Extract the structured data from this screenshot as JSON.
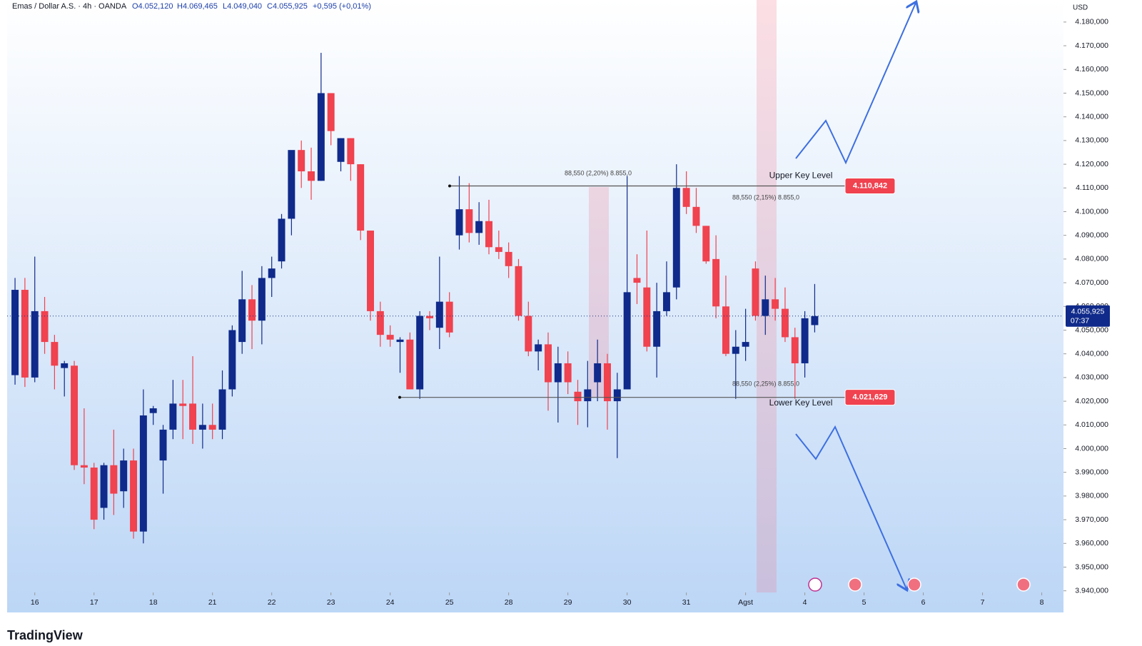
{
  "chart_data": {
    "type": "candlestick",
    "title": "Emas / Dollar A.S. · 4h · OANDA",
    "ohlc_labels": [
      "O4.052,120",
      "H4.069,465",
      "L4.049,040",
      "C4.055,925",
      "+0,595 (+0,01%)"
    ],
    "currency": "USD",
    "up_color": "#0f2a8a",
    "down_color": "#f0424f",
    "open": [
      4031,
      4067,
      4030,
      4058,
      4045,
      4034,
      4035,
      3993,
      3992,
      3975,
      3993,
      3982,
      3995,
      3965,
      4015,
      3995,
      4008,
      4019,
      4019,
      4008,
      4010,
      4008,
      4025,
      4045,
      4063,
      4054,
      4072,
      4079,
      4097,
      4126,
      4117,
      4113,
      4150,
      4121,
      4131,
      4120,
      4092,
      4058,
      4048,
      4045,
      4046,
      4025,
      4056,
      4051,
      4062,
      4090,
      4101,
      4091,
      4096,
      4085,
      4083,
      4077,
      4056,
      4041,
      4044,
      4028,
      4036,
      4024,
      4020,
      4028,
      4036,
      4020,
      4025,
      4072,
      4068,
      4043,
      4058,
      4068,
      4110,
      4102,
      4094,
      4080,
      4060,
      4040,
      4043,
      4076,
      4056,
      4063,
      4059,
      4047,
      4036,
      4052.12
    ],
    "high": [
      4072,
      4072,
      4081,
      4064,
      4048,
      4037,
      4037,
      4017,
      3994,
      3994,
      4008,
      4000,
      4000,
      4025,
      4018,
      4010,
      4029,
      4029,
      4039,
      4019,
      4019,
      4033,
      4052,
      4075,
      4069,
      4077,
      4081,
      4099,
      4125,
      4130,
      4127,
      4167,
      4150,
      4131,
      4131,
      4120,
      4092,
      4062,
      4052,
      4047,
      4049,
      4058,
      4058,
      4081,
      4066,
      4115,
      4112,
      4104,
      4105,
      4092,
      4087,
      4080,
      4062,
      4046,
      4049,
      4043,
      4041,
      4029,
      4037,
      4046,
      4040,
      4032,
      4115,
      4082,
      4092,
      4070,
      4079,
      4120,
      4117,
      4110,
      4094,
      4090,
      4073,
      4050,
      4059,
      4079,
      4073,
      4072,
      4068,
      4051,
      4058,
      4069.465
    ],
    "low": [
      4027,
      4026,
      4028,
      4040,
      4025,
      4022,
      3991,
      3985,
      3966,
      3970,
      3972,
      3975,
      3962,
      3960,
      4010,
      3981,
      4004,
      4004,
      4002,
      4000,
      4004,
      4004,
      4022,
      4040,
      4042,
      4044,
      4064,
      4076,
      4090,
      4110,
      4105,
      4113,
      4128,
      4117,
      4113,
      4088,
      4054,
      4043,
      4043,
      4032,
      4025,
      4021,
      4050,
      4042,
      4047,
      4084,
      4087,
      4086,
      4082,
      4080,
      4072,
      4054,
      4039,
      4033,
      4016,
      4011,
      4023,
      4010,
      4009,
      4020,
      4008,
      3996,
      4025,
      4061,
      4041,
      4030,
      4056,
      4063,
      4099,
      4091,
      4078,
      4055,
      4039,
      4021,
      4037,
      4054,
      4048,
      4054,
      4045,
      4021,
      4030,
      4049.04
    ],
    "close": [
      4067,
      4030,
      4058,
      4045,
      4035,
      4036,
      3993,
      3992,
      3970,
      3993,
      3981,
      3995,
      3965,
      4014,
      4017,
      4008,
      4019,
      4018,
      4008,
      4010,
      4008,
      4025,
      4050,
      4063,
      4054,
      4072,
      4076,
      4097,
      4126,
      4117,
      4113,
      4150,
      4134,
      4131,
      4120,
      4092,
      4058,
      4048,
      4046,
      4046,
      4025,
      4056,
      4055,
      4062,
      4049,
      4101,
      4091,
      4096,
      4085,
      4083,
      4077,
      4056,
      4041,
      4044,
      4028,
      4036,
      4028,
      4020,
      4025,
      4036,
      4020,
      4025,
      4066,
      4070,
      4043,
      4058,
      4066,
      4110,
      4102,
      4094,
      4079,
      4060,
      4040,
      4043,
      4045,
      4056,
      4063,
      4059,
      4047,
      4036,
      4055,
      4055.925
    ],
    "xlim": [
      -0.8,
      106.2
    ],
    "xticks": [
      {
        "value": 2,
        "label": "16"
      },
      {
        "value": 8,
        "label": "17"
      },
      {
        "value": 14,
        "label": "18"
      },
      {
        "value": 20,
        "label": "21"
      },
      {
        "value": 26,
        "label": "22"
      },
      {
        "value": 32,
        "label": "23"
      },
      {
        "value": 38,
        "label": "24"
      },
      {
        "value": 44,
        "label": "25"
      },
      {
        "value": 50,
        "label": "28"
      },
      {
        "value": 56,
        "label": "29"
      },
      {
        "value": 62,
        "label": "30"
      },
      {
        "value": 68,
        "label": "31"
      },
      {
        "value": 74,
        "label": "Agst"
      },
      {
        "value": 80,
        "label": "4"
      },
      {
        "value": 86,
        "label": "5"
      },
      {
        "value": 92,
        "label": "6"
      },
      {
        "value": 98,
        "label": "7"
      },
      {
        "value": 104,
        "label": "8"
      }
    ],
    "ylim": [
      3939.3,
      4189.3
    ],
    "yticks": [
      {
        "value": 3940,
        "label": "3.940,000"
      },
      {
        "value": 3950,
        "label": "3.950,000"
      },
      {
        "value": 3960,
        "label": "3.960,000"
      },
      {
        "value": 3970,
        "label": "3.970,000"
      },
      {
        "value": 3980,
        "label": "3.980,000"
      },
      {
        "value": 3990,
        "label": "3.990,000"
      },
      {
        "value": 4000,
        "label": "4.000,000"
      },
      {
        "value": 4010,
        "label": "4.010,000"
      },
      {
        "value": 4020,
        "label": "4.020,000"
      },
      {
        "value": 4030,
        "label": "4.030,000"
      },
      {
        "value": 4040,
        "label": "4.040,000"
      },
      {
        "value": 4050,
        "label": "4.050,000"
      },
      {
        "value": 4060,
        "label": "4.060,000"
      },
      {
        "value": 4070,
        "label": "4.070,000"
      },
      {
        "value": 4080,
        "label": "4.080,000"
      },
      {
        "value": 4090,
        "label": "4.090,000"
      },
      {
        "value": 4100,
        "label": "4.100,000"
      },
      {
        "value": 4110,
        "label": "4.110,000"
      },
      {
        "value": 4120,
        "label": "4.120,000"
      },
      {
        "value": 4130,
        "label": "4.130,000"
      },
      {
        "value": 4140,
        "label": "4.140,000"
      },
      {
        "value": 4150,
        "label": "4.150,000"
      },
      {
        "value": 4160,
        "label": "4.160,000"
      },
      {
        "value": 4170,
        "label": "4.170,000"
      },
      {
        "value": 4180,
        "label": "4.180,000"
      }
    ],
    "levels": [
      {
        "name": "Upper Key Level",
        "value": 4110.842,
        "label": "4.110,842"
      },
      {
        "name": "Lower Key Level",
        "value": 4021.629,
        "label": "4.021,629"
      }
    ],
    "measures": [
      "88,550 (2,20%) 8.855,0",
      "88,550 (2,15%) 8.855,0",
      "88,550 (2,25%) 8.855,0"
    ],
    "last_price": {
      "value": 4055.925,
      "label": "4.055,925"
    },
    "countdown": "07:37",
    "watermark": "TradingView"
  }
}
